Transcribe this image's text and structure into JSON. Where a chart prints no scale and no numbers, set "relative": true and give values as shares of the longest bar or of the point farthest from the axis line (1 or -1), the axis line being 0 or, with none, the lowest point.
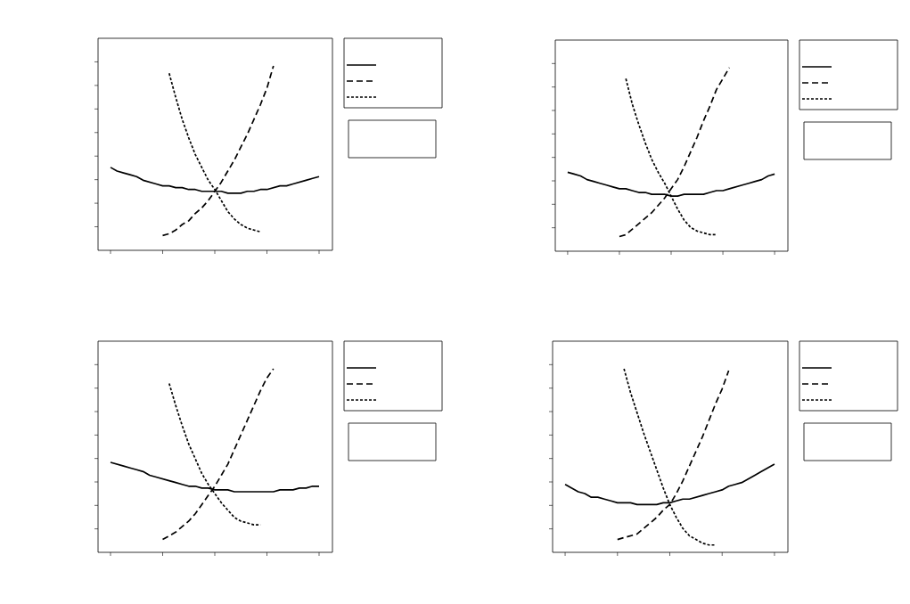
{
  "chart_data": [
    {
      "type": "line",
      "relative": true,
      "categories": [
        null,
        null,
        null,
        null,
        null,
        null,
        null,
        null,
        null,
        null,
        null,
        null,
        null,
        null,
        null,
        null,
        null,
        null,
        null,
        null,
        null,
        null,
        null,
        null,
        null,
        null,
        null,
        null,
        null,
        null,
        null,
        null,
        null
      ],
      "series": [
        {
          "color": "#000000",
          "line_style": "solid",
          "values": [
            0.45,
            0.43,
            0.42,
            0.41,
            0.4,
            0.38,
            0.37,
            0.36,
            0.35,
            0.35,
            0.34,
            0.34,
            0.33,
            0.33,
            0.32,
            0.32,
            0.32,
            0.32,
            0.31,
            0.31,
            0.31,
            0.32,
            0.32,
            0.33,
            0.33,
            0.34,
            0.35,
            0.35,
            0.36,
            0.37,
            0.38,
            0.39,
            0.4
          ]
        },
        {
          "color": "#000000",
          "line_style": "dashed",
          "values": [
            null,
            null,
            null,
            null,
            null,
            null,
            null,
            null,
            0.08,
            0.09,
            0.11,
            0.14,
            0.16,
            0.2,
            0.23,
            0.27,
            0.32,
            0.37,
            0.43,
            0.49,
            0.56,
            0.63,
            0.71,
            0.79,
            0.88,
            1,
            null,
            null,
            null,
            null,
            null,
            null,
            null
          ]
        },
        {
          "color": "#000000",
          "line_style": "dotted",
          "values": [
            null,
            null,
            null,
            null,
            null,
            null,
            null,
            null,
            null,
            0.96,
            0.83,
            0.71,
            0.61,
            0.52,
            0.45,
            0.38,
            0.33,
            0.27,
            0.21,
            0.17,
            0.14,
            0.12,
            0.11,
            0.1,
            null,
            null,
            null,
            null,
            null,
            null,
            null,
            null,
            null
          ]
        }
      ]
    },
    {
      "type": "line",
      "relative": true,
      "categories": [
        null,
        null,
        null,
        null,
        null,
        null,
        null,
        null,
        null,
        null,
        null,
        null,
        null,
        null,
        null,
        null,
        null,
        null,
        null,
        null,
        null,
        null,
        null,
        null,
        null,
        null,
        null,
        null,
        null,
        null,
        null,
        null,
        null
      ],
      "series": [
        {
          "color": "#000000",
          "line_style": "solid",
          "values": [
            0.43,
            0.42,
            0.41,
            0.39,
            0.38,
            0.37,
            0.36,
            0.35,
            0.34,
            0.34,
            0.33,
            0.32,
            0.32,
            0.31,
            0.31,
            0.31,
            0.3,
            0.3,
            0.31,
            0.31,
            0.31,
            0.31,
            0.32,
            0.33,
            0.33,
            0.34,
            0.35,
            0.36,
            0.37,
            0.38,
            0.39,
            0.41,
            0.42
          ]
        },
        {
          "color": "#000000",
          "line_style": "dashed",
          "values": [
            null,
            null,
            null,
            null,
            null,
            null,
            null,
            null,
            0.08,
            0.09,
            0.12,
            0.15,
            0.18,
            0.21,
            0.25,
            0.29,
            0.34,
            0.39,
            0.46,
            0.54,
            0.62,
            0.71,
            0.79,
            0.88,
            0.94,
            1,
            null,
            null,
            null,
            null,
            null,
            null,
            null
          ]
        },
        {
          "color": "#000000",
          "line_style": "dotted",
          "values": [
            null,
            null,
            null,
            null,
            null,
            null,
            null,
            null,
            null,
            0.94,
            0.8,
            0.69,
            0.59,
            0.5,
            0.43,
            0.37,
            0.3,
            0.23,
            0.17,
            0.13,
            0.11,
            0.1,
            0.09,
            0.09,
            null,
            null,
            null,
            null,
            null,
            null,
            null,
            null,
            null
          ]
        }
      ]
    },
    {
      "type": "line",
      "relative": true,
      "categories": [
        null,
        null,
        null,
        null,
        null,
        null,
        null,
        null,
        null,
        null,
        null,
        null,
        null,
        null,
        null,
        null,
        null,
        null,
        null,
        null,
        null,
        null,
        null,
        null,
        null,
        null,
        null,
        null,
        null,
        null,
        null,
        null,
        null
      ],
      "series": [
        {
          "color": "#000000",
          "line_style": "solid",
          "values": [
            0.49,
            0.48,
            0.47,
            0.46,
            0.45,
            0.44,
            0.42,
            0.41,
            0.4,
            0.39,
            0.38,
            0.37,
            0.36,
            0.36,
            0.35,
            0.35,
            0.34,
            0.34,
            0.34,
            0.33,
            0.33,
            0.33,
            0.33,
            0.33,
            0.33,
            0.33,
            0.34,
            0.34,
            0.34,
            0.35,
            0.35,
            0.36,
            0.36
          ]
        },
        {
          "color": "#000000",
          "line_style": "dashed",
          "values": [
            null,
            null,
            null,
            null,
            null,
            null,
            null,
            null,
            0.07,
            0.09,
            0.11,
            0.14,
            0.17,
            0.21,
            0.26,
            0.31,
            0.36,
            0.42,
            0.48,
            0.56,
            0.64,
            0.72,
            0.8,
            0.88,
            0.95,
            1,
            null,
            null,
            null,
            null,
            null,
            null,
            null
          ]
        },
        {
          "color": "#000000",
          "line_style": "dotted",
          "values": [
            null,
            null,
            null,
            null,
            null,
            null,
            null,
            null,
            null,
            0.92,
            0.8,
            0.69,
            0.59,
            0.51,
            0.43,
            0.37,
            0.32,
            0.27,
            0.23,
            0.19,
            0.17,
            0.16,
            0.15,
            0.15,
            null,
            null,
            null,
            null,
            null,
            null,
            null,
            null,
            null
          ]
        }
      ]
    },
    {
      "type": "line",
      "relative": true,
      "categories": [
        null,
        null,
        null,
        null,
        null,
        null,
        null,
        null,
        null,
        null,
        null,
        null,
        null,
        null,
        null,
        null,
        null,
        null,
        null,
        null,
        null,
        null,
        null,
        null,
        null,
        null,
        null,
        null,
        null,
        null,
        null,
        null,
        null
      ],
      "series": [
        {
          "color": "#000000",
          "line_style": "solid",
          "values": [
            0.37,
            0.35,
            0.33,
            0.32,
            0.3,
            0.3,
            0.29,
            0.28,
            0.27,
            0.27,
            0.27,
            0.26,
            0.26,
            0.26,
            0.26,
            0.27,
            0.27,
            0.28,
            0.29,
            0.29,
            0.3,
            0.31,
            0.32,
            0.33,
            0.34,
            0.36,
            0.37,
            0.38,
            0.4,
            0.42,
            0.44,
            0.46,
            0.48
          ]
        },
        {
          "color": "#000000",
          "line_style": "dashed",
          "values": [
            null,
            null,
            null,
            null,
            null,
            null,
            null,
            null,
            0.07,
            0.08,
            0.09,
            0.1,
            0.13,
            0.16,
            0.19,
            0.23,
            0.26,
            0.32,
            0.39,
            0.47,
            0.55,
            0.63,
            0.72,
            0.81,
            0.89,
            0.99,
            null,
            null,
            null,
            null,
            null,
            null,
            null
          ]
        },
        {
          "color": "#000000",
          "line_style": "dotted",
          "values": [
            null,
            null,
            null,
            null,
            null,
            null,
            null,
            null,
            null,
            1,
            0.87,
            0.76,
            0.65,
            0.55,
            0.45,
            0.35,
            0.26,
            0.19,
            0.13,
            0.09,
            0.07,
            0.05,
            0.04,
            0.04,
            null,
            null,
            null,
            null,
            null,
            null,
            null,
            null,
            null
          ]
        }
      ]
    }
  ]
}
